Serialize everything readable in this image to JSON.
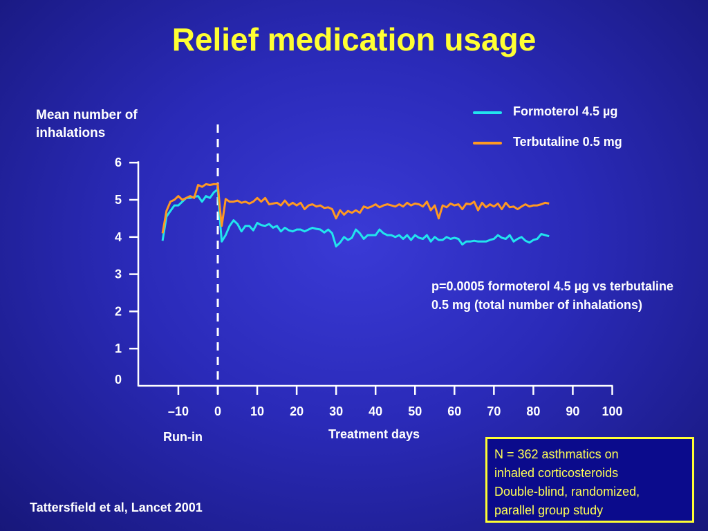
{
  "slide": {
    "title": "Relief medication usage",
    "citation": "Tattersfield et al, Lancet 2001",
    "annotation": "p=0.0005 formoterol 4.5 µg vs terbutaline 0.5 mg (total number of inhalations)",
    "info_box": [
      "N = 362  asthmatics on",
      "inhaled corticosteroids",
      "Double-blind, randomized,",
      "parallel group study"
    ],
    "run_in_label": "Run-in",
    "background_color": "#2a2ab8",
    "title_color": "#ffff33"
  },
  "chart_data": {
    "type": "line",
    "title": "",
    "ylabel": "Mean number of inhalations",
    "xlabel": "Treatment days",
    "ylim": [
      0,
      6
    ],
    "xlim": [
      -20,
      100
    ],
    "y_ticks": [
      "0",
      "1",
      "2",
      "3",
      "4",
      "5",
      "6"
    ],
    "x_ticks": [
      {
        "value": -10,
        "label": "–10"
      },
      {
        "value": 0,
        "label": "0"
      },
      {
        "value": 10,
        "label": "10"
      },
      {
        "value": 20,
        "label": "20"
      },
      {
        "value": 30,
        "label": "30"
      },
      {
        "value": 40,
        "label": "40"
      },
      {
        "value": 50,
        "label": "50"
      },
      {
        "value": 60,
        "label": "60"
      },
      {
        "value": 70,
        "label": "70"
      },
      {
        "value": 80,
        "label": "80"
      },
      {
        "value": 90,
        "label": "90"
      },
      {
        "value": 100,
        "label": "100"
      }
    ],
    "reference_line_x": 0,
    "legend_position": "top-right",
    "series": [
      {
        "name": "Formoterol 4.5 µg",
        "color": "#22e4ee",
        "points": [
          [
            -14,
            3.9
          ],
          [
            -13,
            4.55
          ],
          [
            -12,
            4.7
          ],
          [
            -11,
            4.85
          ],
          [
            -10,
            4.85
          ],
          [
            -9,
            4.95
          ],
          [
            -8,
            5.05
          ],
          [
            -7,
            5.05
          ],
          [
            -6,
            5.08
          ],
          [
            -5,
            5.1
          ],
          [
            -4,
            4.95
          ],
          [
            -3,
            5.1
          ],
          [
            -2,
            5.05
          ],
          [
            -1,
            5.2
          ],
          [
            0,
            5.28
          ],
          [
            0.5,
            4.5
          ],
          [
            1,
            3.88
          ],
          [
            2,
            4.05
          ],
          [
            3,
            4.3
          ],
          [
            4,
            4.45
          ],
          [
            5,
            4.35
          ],
          [
            6,
            4.15
          ],
          [
            7,
            4.3
          ],
          [
            8,
            4.3
          ],
          [
            9,
            4.18
          ],
          [
            10,
            4.38
          ],
          [
            11,
            4.32
          ],
          [
            12,
            4.3
          ],
          [
            13,
            4.35
          ],
          [
            14,
            4.25
          ],
          [
            15,
            4.3
          ],
          [
            16,
            4.15
          ],
          [
            17,
            4.25
          ],
          [
            18,
            4.18
          ],
          [
            19,
            4.15
          ],
          [
            20,
            4.2
          ],
          [
            21,
            4.2
          ],
          [
            22,
            4.15
          ],
          [
            23,
            4.2
          ],
          [
            24,
            4.25
          ],
          [
            25,
            4.22
          ],
          [
            26,
            4.2
          ],
          [
            27,
            4.12
          ],
          [
            28,
            4.2
          ],
          [
            29,
            4.1
          ],
          [
            30,
            3.75
          ],
          [
            31,
            3.85
          ],
          [
            32,
            4.0
          ],
          [
            33,
            3.92
          ],
          [
            34,
            3.98
          ],
          [
            35,
            4.2
          ],
          [
            36,
            4.1
          ],
          [
            37,
            3.95
          ],
          [
            38,
            4.05
          ],
          [
            39,
            4.05
          ],
          [
            40,
            4.05
          ],
          [
            41,
            4.2
          ],
          [
            42,
            4.1
          ],
          [
            43,
            4.05
          ],
          [
            44,
            4.05
          ],
          [
            45,
            4.0
          ],
          [
            46,
            4.05
          ],
          [
            47,
            3.95
          ],
          [
            48,
            4.05
          ],
          [
            49,
            3.92
          ],
          [
            50,
            4.05
          ],
          [
            51,
            3.98
          ],
          [
            52,
            3.95
          ],
          [
            53,
            4.05
          ],
          [
            54,
            3.88
          ],
          [
            55,
            4.0
          ],
          [
            56,
            3.92
          ],
          [
            57,
            3.92
          ],
          [
            58,
            4.0
          ],
          [
            59,
            3.95
          ],
          [
            60,
            3.98
          ],
          [
            61,
            3.95
          ],
          [
            62,
            3.8
          ],
          [
            63,
            3.88
          ],
          [
            64,
            3.88
          ],
          [
            65,
            3.9
          ],
          [
            66,
            3.88
          ],
          [
            67,
            3.88
          ],
          [
            68,
            3.88
          ],
          [
            69,
            3.92
          ],
          [
            70,
            3.95
          ],
          [
            71,
            4.05
          ],
          [
            72,
            3.98
          ],
          [
            73,
            3.95
          ],
          [
            74,
            4.05
          ],
          [
            75,
            3.88
          ],
          [
            76,
            3.95
          ],
          [
            77,
            4.0
          ],
          [
            78,
            3.9
          ],
          [
            79,
            3.85
          ],
          [
            80,
            3.92
          ],
          [
            81,
            3.95
          ],
          [
            82,
            4.08
          ],
          [
            83,
            4.05
          ],
          [
            84,
            4.02
          ]
        ]
      },
      {
        "name": "Terbutaline 0.5 mg",
        "color": "#ff9922",
        "points": [
          [
            -14,
            4.1
          ],
          [
            -13,
            4.7
          ],
          [
            -12,
            4.95
          ],
          [
            -11,
            5.0
          ],
          [
            -10,
            5.1
          ],
          [
            -9,
            5.0
          ],
          [
            -8,
            5.05
          ],
          [
            -7,
            5.1
          ],
          [
            -6,
            5.05
          ],
          [
            -5,
            5.4
          ],
          [
            -4,
            5.35
          ],
          [
            -3,
            5.42
          ],
          [
            -2,
            5.4
          ],
          [
            -1,
            5.42
          ],
          [
            0,
            5.42
          ],
          [
            0.5,
            4.8
          ],
          [
            1,
            4.3
          ],
          [
            2,
            5.02
          ],
          [
            3,
            4.95
          ],
          [
            4,
            4.95
          ],
          [
            5,
            4.98
          ],
          [
            6,
            4.92
          ],
          [
            7,
            4.95
          ],
          [
            8,
            4.9
          ],
          [
            9,
            4.95
          ],
          [
            10,
            5.05
          ],
          [
            11,
            4.95
          ],
          [
            12,
            5.05
          ],
          [
            13,
            4.88
          ],
          [
            14,
            4.9
          ],
          [
            15,
            4.92
          ],
          [
            16,
            4.85
          ],
          [
            17,
            4.98
          ],
          [
            18,
            4.85
          ],
          [
            19,
            4.92
          ],
          [
            20,
            4.85
          ],
          [
            21,
            4.92
          ],
          [
            22,
            4.75
          ],
          [
            23,
            4.85
          ],
          [
            24,
            4.88
          ],
          [
            25,
            4.82
          ],
          [
            26,
            4.85
          ],
          [
            27,
            4.78
          ],
          [
            28,
            4.8
          ],
          [
            29,
            4.75
          ],
          [
            30,
            4.5
          ],
          [
            31,
            4.72
          ],
          [
            32,
            4.6
          ],
          [
            33,
            4.7
          ],
          [
            34,
            4.65
          ],
          [
            35,
            4.72
          ],
          [
            36,
            4.65
          ],
          [
            37,
            4.82
          ],
          [
            38,
            4.78
          ],
          [
            39,
            4.82
          ],
          [
            40,
            4.88
          ],
          [
            41,
            4.8
          ],
          [
            42,
            4.85
          ],
          [
            43,
            4.88
          ],
          [
            44,
            4.85
          ],
          [
            45,
            4.82
          ],
          [
            46,
            4.88
          ],
          [
            47,
            4.82
          ],
          [
            48,
            4.92
          ],
          [
            49,
            4.85
          ],
          [
            50,
            4.9
          ],
          [
            51,
            4.88
          ],
          [
            52,
            4.82
          ],
          [
            53,
            4.95
          ],
          [
            54,
            4.72
          ],
          [
            55,
            4.85
          ],
          [
            56,
            4.5
          ],
          [
            57,
            4.85
          ],
          [
            58,
            4.8
          ],
          [
            59,
            4.9
          ],
          [
            60,
            4.85
          ],
          [
            61,
            4.88
          ],
          [
            62,
            4.75
          ],
          [
            63,
            4.9
          ],
          [
            64,
            4.88
          ],
          [
            65,
            4.95
          ],
          [
            66,
            4.72
          ],
          [
            67,
            4.92
          ],
          [
            68,
            4.8
          ],
          [
            69,
            4.88
          ],
          [
            70,
            4.82
          ],
          [
            71,
            4.9
          ],
          [
            72,
            4.75
          ],
          [
            73,
            4.92
          ],
          [
            74,
            4.8
          ],
          [
            75,
            4.82
          ],
          [
            76,
            4.75
          ],
          [
            77,
            4.82
          ],
          [
            78,
            4.88
          ],
          [
            79,
            4.82
          ],
          [
            80,
            4.85
          ],
          [
            81,
            4.85
          ],
          [
            82,
            4.88
          ],
          [
            83,
            4.92
          ],
          [
            84,
            4.9
          ]
        ]
      }
    ]
  }
}
